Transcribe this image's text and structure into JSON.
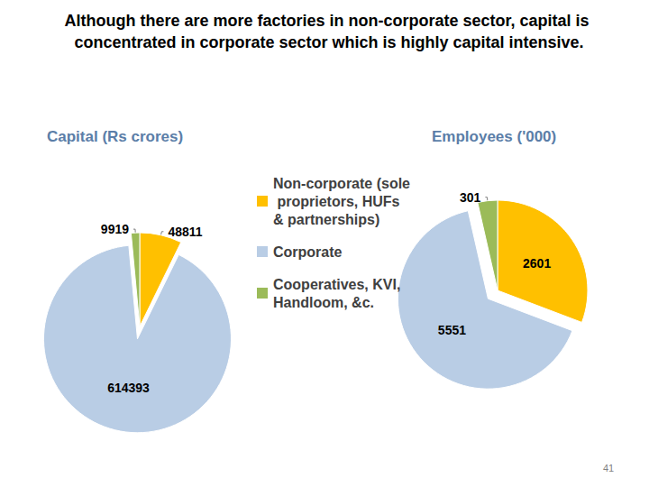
{
  "title": "Although there are more factories in non-corporate sector, capital is concentrated in corporate sector which is highly capital intensive.",
  "page": "41",
  "chart_data": [
    {
      "type": "pie",
      "title": "Capital (Rs crores)",
      "categories": [
        "Non-corporate (sole proprietors, HUFs & partnerships)",
        "Corporate",
        "Cooperatives, KVI, Handloom, &c."
      ],
      "values": [
        48811,
        614393,
        9919
      ],
      "colors": [
        "#ffc000",
        "#b9cde5",
        "#9bbb59"
      ],
      "data_labels": true,
      "legend": "right"
    },
    {
      "type": "pie",
      "title": "Employees ('000)",
      "categories": [
        "Non-corporate (sole proprietors, HUFs & partnerships)",
        "Corporate",
        "Cooperatives, KVI, Handloom, &c."
      ],
      "values": [
        2601,
        5551,
        301
      ],
      "colors": [
        "#ffc000",
        "#b9cde5",
        "#9bbb59"
      ],
      "data_labels": true
    }
  ]
}
